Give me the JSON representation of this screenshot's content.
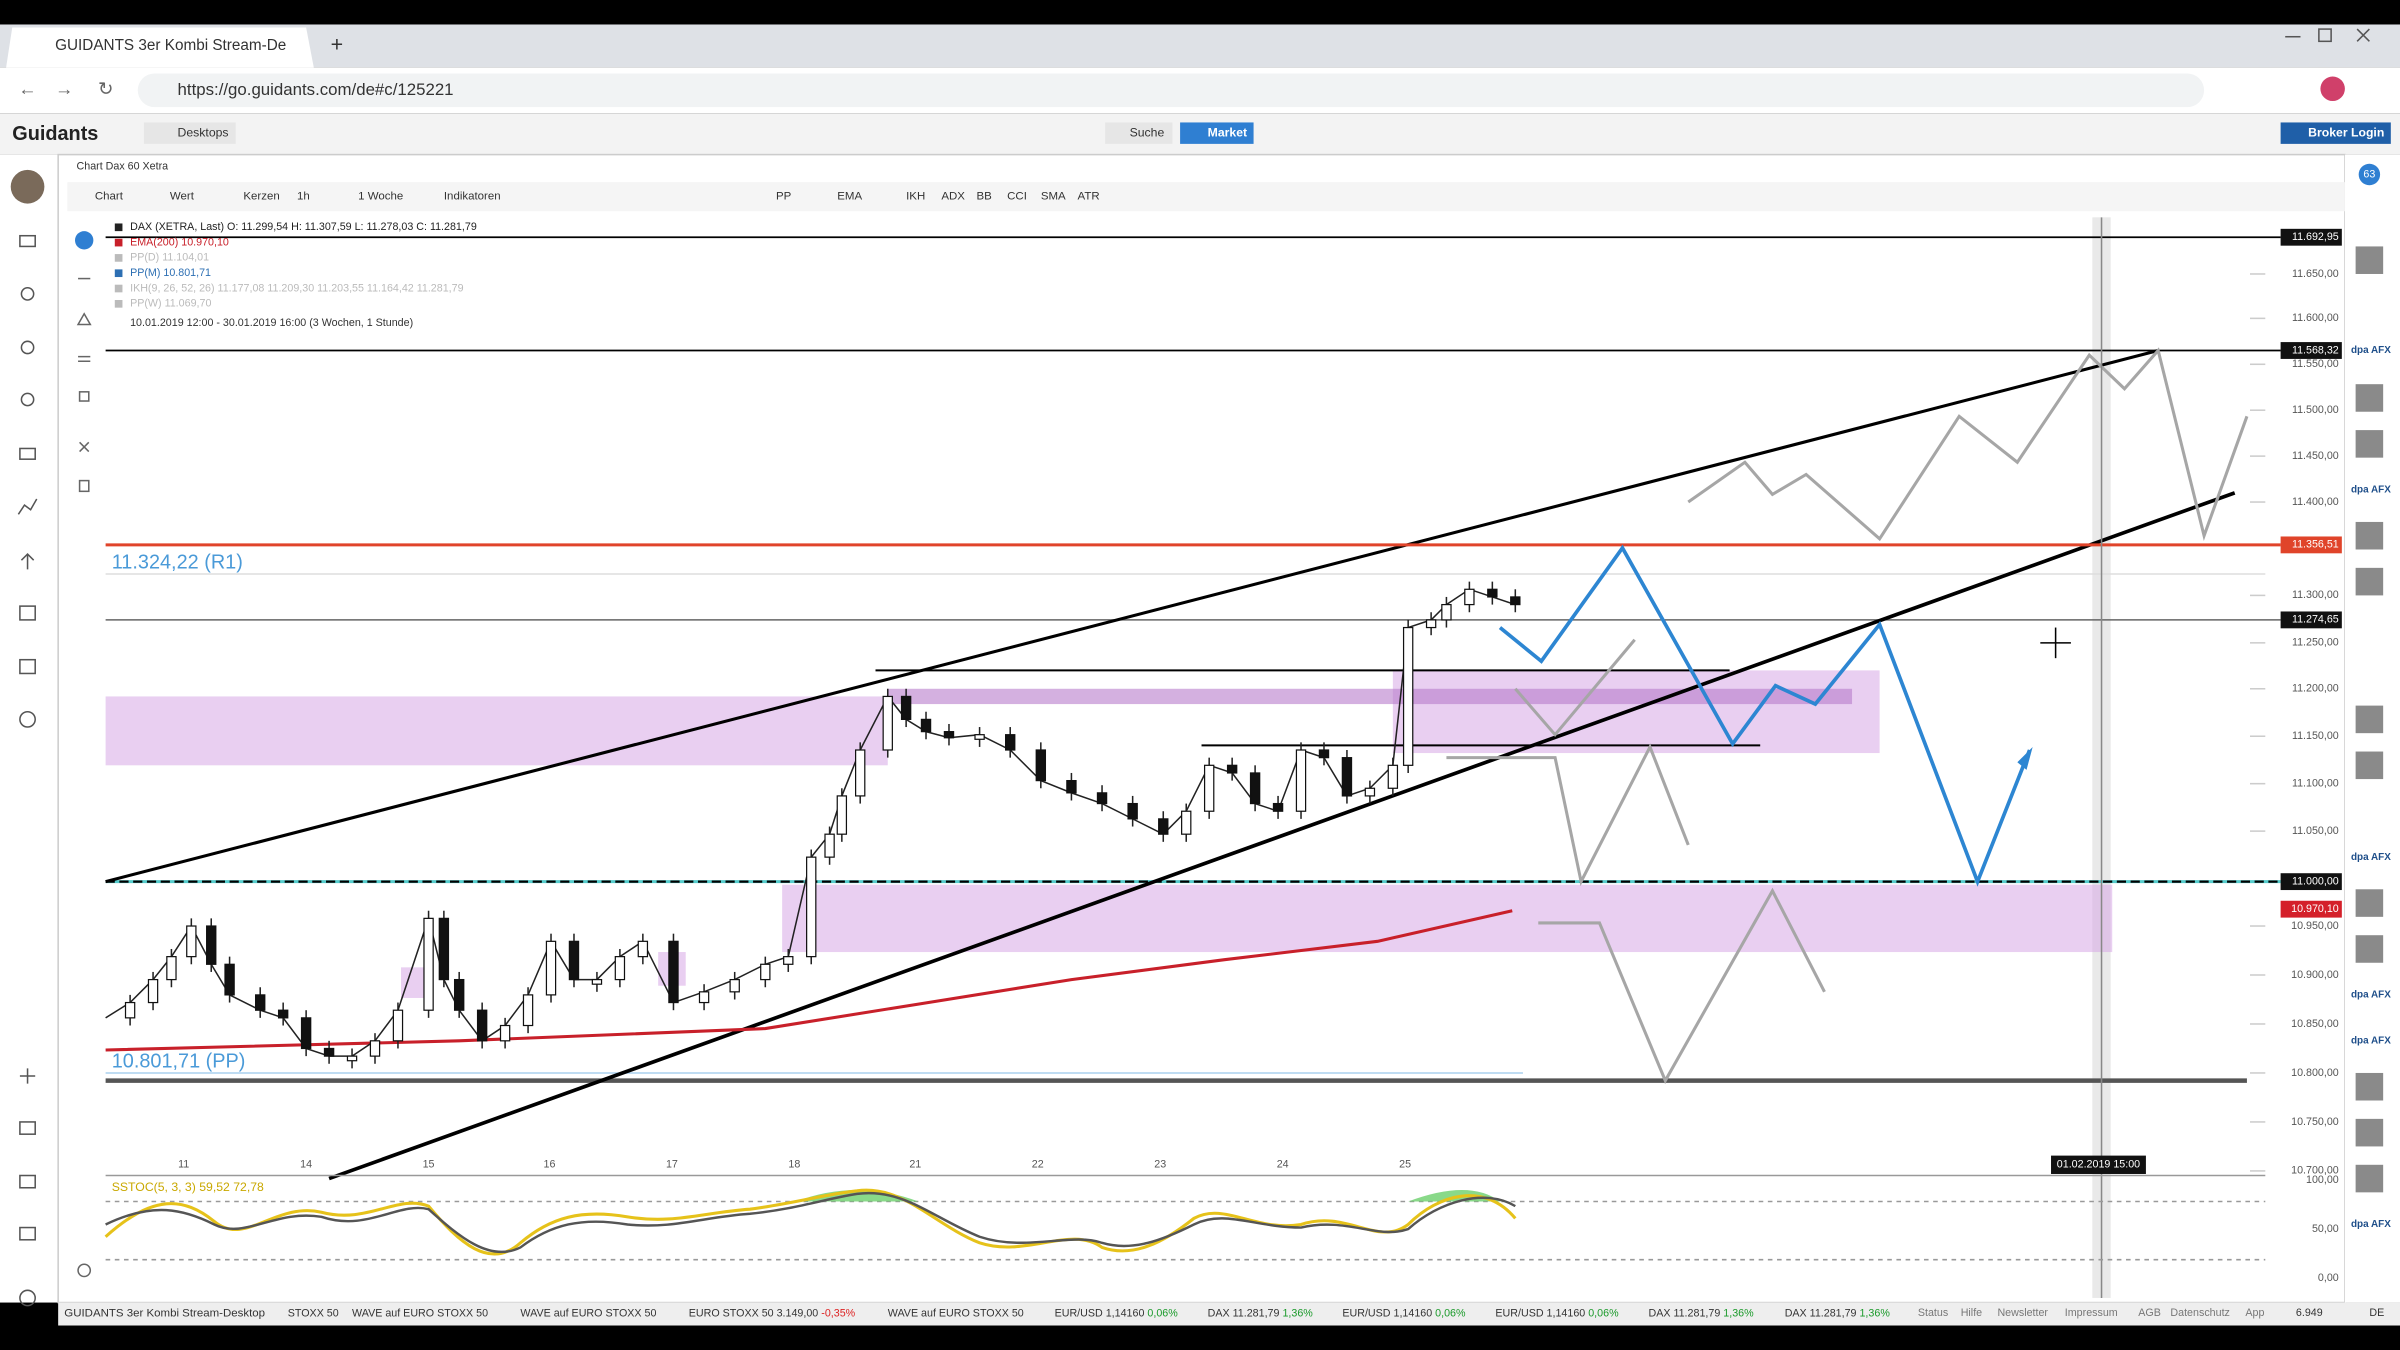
{
  "browser": {
    "tab_title": "GUIDANTS 3er Kombi Stream-De",
    "url": "https://go.guidants.com/de#c/125221"
  },
  "app": {
    "logo": "Guidants",
    "desktops": "Desktops",
    "search": "Suche",
    "market": "Market",
    "broker_login": "Broker Login"
  },
  "chart_window": {
    "title": "Chart Dax 60 Xetra",
    "toolbar": [
      "Chart",
      "Wert",
      "Kerzen",
      "1h",
      "1 Woche",
      "Indikatoren",
      "PP",
      "EMA",
      "IKH",
      "ADX",
      "BB",
      "CCI",
      "SMA",
      "ATR"
    ],
    "legend": [
      "DAX (XETRA, Last) O: 11.299,54 H: 11.307,59 L: 11.278,03 C: 11.281,79",
      "EMA(200) 10.970,10",
      "PP(D) 11.104,01",
      "PP(M) 10.801,71",
      "IKH(9, 26, 52, 26) 11.177,08 11.209,30 11.203,55 11.164,42 11.281,79",
      "PP(W) 11.069,70"
    ],
    "period": "10.01.2019 12:00 - 30.01.2019 16:00 (3 Wochen, 1 Stunde)",
    "price_axis": [
      "11.650,00",
      "11.600,00",
      "11.550,00",
      "11.500,00",
      "11.450,00",
      "11.400,00",
      "11.300,00",
      "11.250,00",
      "11.200,00",
      "11.150,00",
      "11.100,00",
      "11.050,00",
      "10.950,00",
      "10.900,00",
      "10.850,00",
      "10.800,00",
      "10.750,00",
      "10.700,00"
    ],
    "price_markers": [
      "11.692,95",
      "11.568,32",
      "11.356,51",
      "11.274,65",
      "11.000,00",
      "10.970,10"
    ],
    "annotations": [
      "11.324,22 (R1)",
      "10.801,71 (PP)"
    ],
    "date_axis": [
      "11",
      "14",
      "15",
      "16",
      "17",
      "18",
      "21",
      "22",
      "23",
      "24",
      "25"
    ],
    "crosshair_date": "01.02.2019 15:00",
    "oscillator": {
      "label": "SSTOC(5, 3, 3) 59,52 72,78",
      "axis": [
        "100,00",
        "50,00",
        "0,00"
      ]
    }
  },
  "sidebar": {
    "badge": "63",
    "news_logos": [
      "dpa AFX",
      "dpa AFX",
      "dpa AFX",
      "dpa AFX",
      "dpa AFX",
      "dpa AFX"
    ]
  },
  "status_bar": {
    "desktop": "GUIDANTS 3er Kombi Stream-Desktop",
    "tickers": [
      {
        "label": "STOXX 50"
      },
      {
        "label": "WAVE auf EURO STOXX 50"
      },
      {
        "label": "WAVE auf EURO STOXX 50"
      },
      {
        "label": "EURO STOXX 50 3.149,00",
        "change": "-0,35%"
      },
      {
        "label": "WAVE auf EURO STOXX 50"
      },
      {
        "label": "EUR/USD 1,14160",
        "change": "0,06%"
      },
      {
        "label": "DAX 11.281,79",
        "change": "1,36%"
      },
      {
        "label": "EUR/USD 1,14160",
        "change": "0,06%"
      },
      {
        "label": "EUR/USD 1,14160",
        "change": "0,06%"
      },
      {
        "label": "DAX 11.281,79",
        "change": "1,36%"
      },
      {
        "label": "DAX 11.281,79",
        "change": "1,36%"
      }
    ],
    "links": [
      "Status",
      "Hilfe",
      "Newsletter",
      "Impressum",
      "AGB",
      "Datenschutz",
      "App"
    ],
    "users": "6.949",
    "language": "DE"
  }
}
